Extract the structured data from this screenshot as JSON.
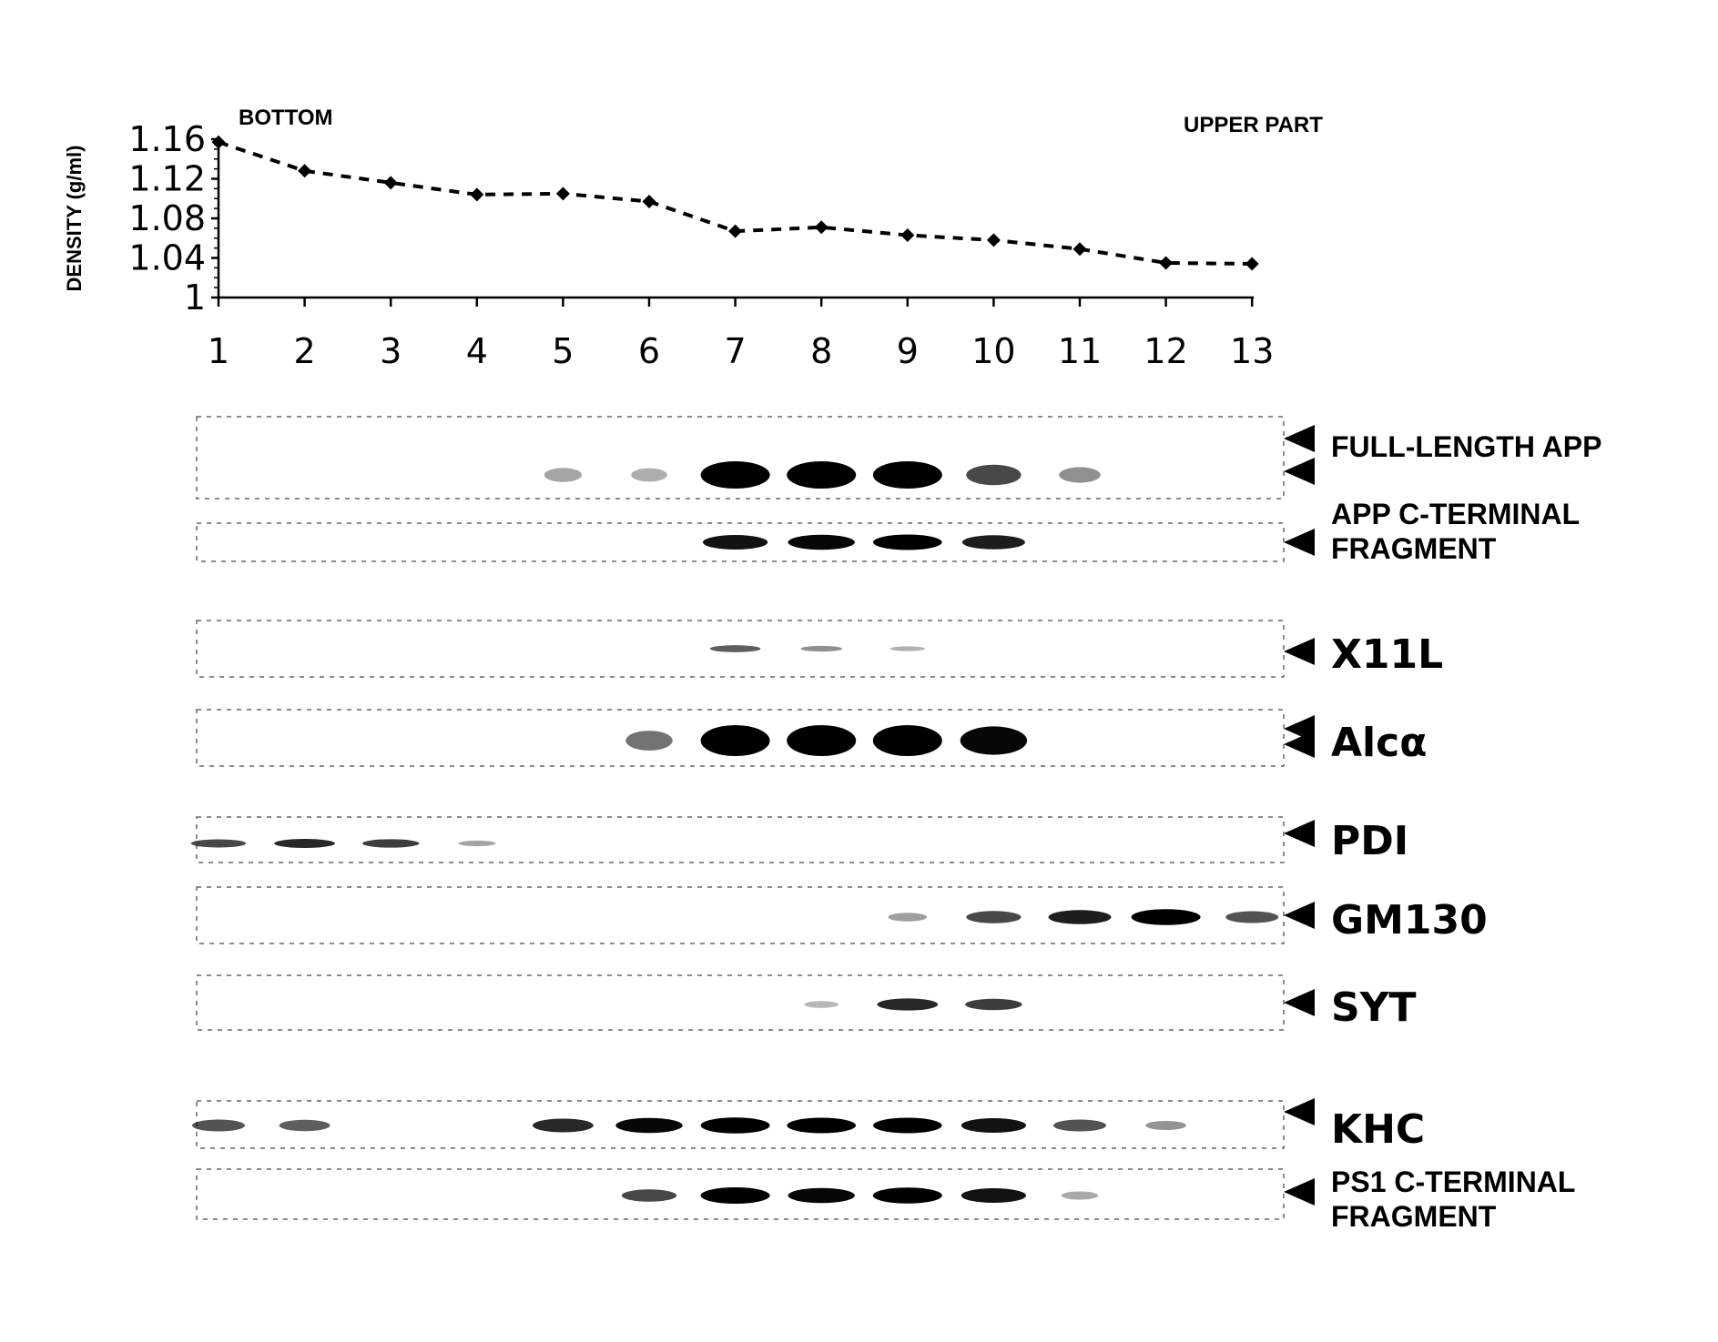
{
  "chart_data": {
    "type": "line",
    "ylabel": "DENSITY (g/ml)",
    "xlabel": "",
    "x": [
      1,
      2,
      3,
      4,
      5,
      6,
      7,
      8,
      9,
      10,
      11,
      12,
      13
    ],
    "xticks": [
      "1",
      "2",
      "3",
      "4",
      "5",
      "6",
      "7",
      "8",
      "9",
      "10",
      "11",
      "12",
      "13"
    ],
    "yticks": [
      "1",
      "1.04",
      "1.08",
      "1.12",
      "1.16"
    ],
    "ylim": [
      1,
      1.16
    ],
    "series": [
      {
        "values": [
          1.157,
          1.128,
          1.116,
          1.104,
          1.105,
          1.097,
          1.067,
          1.071,
          1.063,
          1.058,
          1.049,
          1.035,
          1.034
        ]
      }
    ],
    "line_style": "dashed",
    "marker": "diamond",
    "annotations": [
      "BOTTOM",
      "UPPER PART"
    ]
  },
  "blots": [
    {
      "label": "FULL-LENGTH APP",
      "label_size": "small",
      "arrowheads": 2,
      "bands": [
        {
          "lane": 5,
          "intensity": 0.12
        },
        {
          "lane": 6,
          "intensity": 0.08
        },
        {
          "lane": 7,
          "intensity": 1.0
        },
        {
          "lane": 8,
          "intensity": 1.0
        },
        {
          "lane": 9,
          "intensity": 1.0
        },
        {
          "lane": 10,
          "intensity": 0.55
        },
        {
          "lane": 11,
          "intensity": 0.22
        }
      ]
    },
    {
      "label": "APP C-TERMINAL FRAGMENT",
      "label_lines": [
        "APP C-TERMINAL",
        "FRAGMENT"
      ],
      "label_size": "small",
      "arrowheads": 1,
      "bands": [
        {
          "lane": 7,
          "intensity": 0.8
        },
        {
          "lane": 8,
          "intensity": 0.85
        },
        {
          "lane": 9,
          "intensity": 0.9
        },
        {
          "lane": 10,
          "intensity": 0.75
        }
      ]
    },
    {
      "label": "X11L",
      "label_size": "big",
      "arrowheads": 1,
      "bands": [
        {
          "lane": 7,
          "intensity": 0.45
        },
        {
          "lane": 8,
          "intensity": 0.22
        },
        {
          "lane": 9,
          "intensity": 0.06
        }
      ]
    },
    {
      "label": "Alcα",
      "label_size": "big",
      "arrowheads": 2,
      "bands": [
        {
          "lane": 6,
          "intensity": 0.35
        },
        {
          "lane": 7,
          "intensity": 1.0
        },
        {
          "lane": 8,
          "intensity": 1.0
        },
        {
          "lane": 9,
          "intensity": 1.0
        },
        {
          "lane": 10,
          "intensity": 0.85
        }
      ]
    },
    {
      "label": "PDI",
      "label_size": "big",
      "arrowheads": 1,
      "bands": [
        {
          "lane": 1,
          "intensity": 0.55
        },
        {
          "lane": 2,
          "intensity": 0.7
        },
        {
          "lane": 3,
          "intensity": 0.6
        },
        {
          "lane": 4,
          "intensity": 0.12
        }
      ]
    },
    {
      "label": "GM130",
      "label_size": "big",
      "arrowheads": 1,
      "bands": [
        {
          "lane": 9,
          "intensity": 0.15
        },
        {
          "lane": 10,
          "intensity": 0.55
        },
        {
          "lane": 11,
          "intensity": 0.75
        },
        {
          "lane": 12,
          "intensity": 0.95
        },
        {
          "lane": 13,
          "intensity": 0.5
        }
      ]
    },
    {
      "label": "SYT",
      "label_size": "big",
      "arrowheads": 1,
      "bands": [
        {
          "lane": 8,
          "intensity": 0.04
        },
        {
          "lane": 9,
          "intensity": 0.7
        },
        {
          "lane": 10,
          "intensity": 0.6
        }
      ]
    },
    {
      "label": "KHC",
      "label_size": "big",
      "arrowheads": 1,
      "bands": [
        {
          "lane": 1,
          "intensity": 0.5
        },
        {
          "lane": 2,
          "intensity": 0.45
        },
        {
          "lane": 5,
          "intensity": 0.7
        },
        {
          "lane": 6,
          "intensity": 0.85
        },
        {
          "lane": 7,
          "intensity": 0.95
        },
        {
          "lane": 8,
          "intensity": 0.9
        },
        {
          "lane": 9,
          "intensity": 0.9
        },
        {
          "lane": 10,
          "intensity": 0.8
        },
        {
          "lane": 11,
          "intensity": 0.5
        },
        {
          "lane": 12,
          "intensity": 0.2
        }
      ]
    },
    {
      "label": "PS1 C-TERMINAL FRAGMENT",
      "label_lines": [
        "PS1 C-TERMINAL",
        "FRAGMENT"
      ],
      "label_size": "small",
      "arrowheads": 1,
      "bands": [
        {
          "lane": 6,
          "intensity": 0.55
        },
        {
          "lane": 7,
          "intensity": 1.0
        },
        {
          "lane": 8,
          "intensity": 0.85
        },
        {
          "lane": 9,
          "intensity": 0.95
        },
        {
          "lane": 10,
          "intensity": 0.8
        },
        {
          "lane": 11,
          "intensity": 0.1
        }
      ]
    }
  ]
}
